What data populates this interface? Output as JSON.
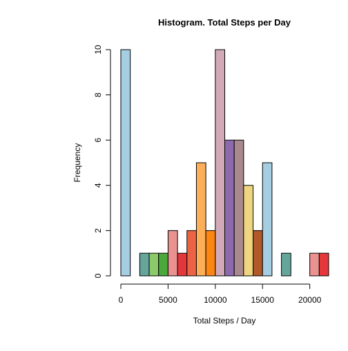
{
  "chart_data": {
    "type": "bar",
    "title": "Histogram. Total Steps per Day",
    "xlabel": "Total Steps / Day",
    "ylabel": "Frequency",
    "bin_width": 1000,
    "bins": [
      {
        "start": 0,
        "end": 1000,
        "count": 10,
        "color": "#a6cee3"
      },
      {
        "start": 1000,
        "end": 2000,
        "count": 0,
        "color": "#1f78b4"
      },
      {
        "start": 2000,
        "end": 3000,
        "count": 1,
        "color": "#66a59a"
      },
      {
        "start": 3000,
        "end": 4000,
        "count": 1,
        "color": "#8cc96b"
      },
      {
        "start": 4000,
        "end": 5000,
        "count": 1,
        "color": "#4aa83c"
      },
      {
        "start": 5000,
        "end": 6000,
        "count": 2,
        "color": "#ea9290"
      },
      {
        "start": 6000,
        "end": 7000,
        "count": 1,
        "color": "#e5373b"
      },
      {
        "start": 7000,
        "end": 8000,
        "count": 2,
        "color": "#ec6344"
      },
      {
        "start": 8000,
        "end": 9000,
        "count": 5,
        "color": "#fcae59"
      },
      {
        "start": 9000,
        "end": 10000,
        "count": 2,
        "color": "#fd8613"
      },
      {
        "start": 10000,
        "end": 11000,
        "count": 10,
        "color": "#d2a9b7"
      },
      {
        "start": 11000,
        "end": 12000,
        "count": 6,
        "color": "#8d6aae"
      },
      {
        "start": 12000,
        "end": 13000,
        "count": 6,
        "color": "#a9898d"
      },
      {
        "start": 13000,
        "end": 14000,
        "count": 4,
        "color": "#f0d581"
      },
      {
        "start": 14000,
        "end": 15000,
        "count": 2,
        "color": "#b15928"
      },
      {
        "start": 15000,
        "end": 16000,
        "count": 5,
        "color": "#a6cee3"
      },
      {
        "start": 16000,
        "end": 17000,
        "count": 0,
        "color": "#1f78b4"
      },
      {
        "start": 17000,
        "end": 18000,
        "count": 1,
        "color": "#66a59a"
      },
      {
        "start": 18000,
        "end": 19000,
        "count": 0,
        "color": "#8cc96b"
      },
      {
        "start": 19000,
        "end": 20000,
        "count": 0,
        "color": "#4aa83c"
      },
      {
        "start": 20000,
        "end": 21000,
        "count": 1,
        "color": "#ea9290"
      },
      {
        "start": 21000,
        "end": 22000,
        "count": 1,
        "color": "#e5373b"
      }
    ],
    "x_ticks": [
      0,
      5000,
      10000,
      15000,
      20000
    ],
    "x_tick_labels": [
      "0",
      "5000",
      "10000",
      "15000",
      "20000"
    ],
    "y_ticks": [
      0,
      2,
      4,
      6,
      8,
      10
    ],
    "y_tick_labels": [
      "0",
      "2",
      "4",
      "6",
      "8",
      "10"
    ],
    "xlim": [
      0,
      22000
    ],
    "ylim": [
      0,
      10
    ],
    "grid": false,
    "legend": "none"
  }
}
